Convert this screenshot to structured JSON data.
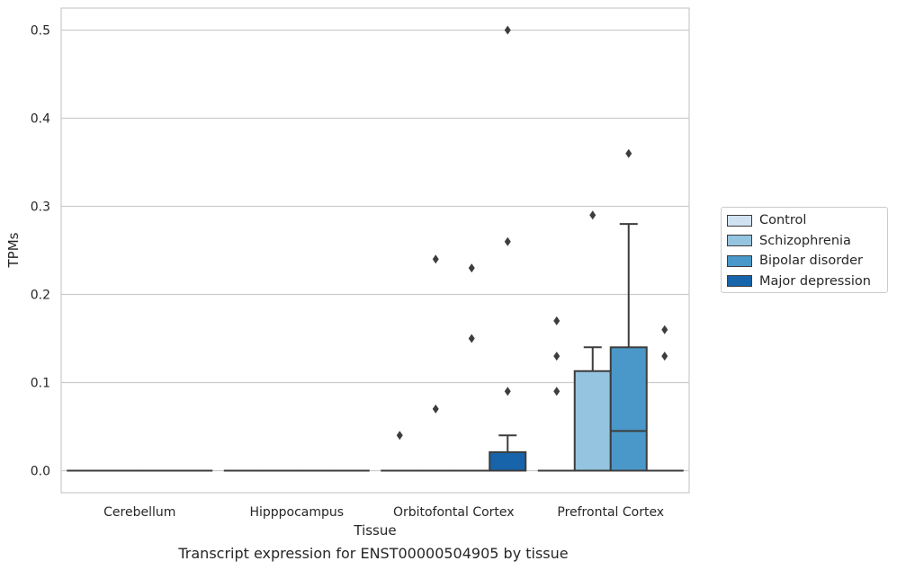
{
  "caption": "Transcript expression for ENST00000504905 by tissue",
  "chart_data": {
    "type": "box",
    "xlabel": "Tissue",
    "ylabel": "TPMs",
    "ylim": [
      -0.025,
      0.525
    ],
    "yticks": [
      0.0,
      0.1,
      0.2,
      0.3,
      0.4,
      0.5
    ],
    "ytick_labels": [
      "0.0",
      "0.1",
      "0.2",
      "0.3",
      "0.4",
      "0.5"
    ],
    "grid": "horizontal",
    "legend_position": "right",
    "categories": [
      "Cerebellum",
      "Hipppocampus",
      "Orbitofontal Cortex",
      "Prefrontal Cortex"
    ],
    "series": [
      {
        "name": "Control",
        "color": "#d0e1f2",
        "boxes": [
          {
            "q1": 0,
            "median": 0,
            "q3": 0,
            "whislo": 0,
            "whishi": 0,
            "fliers": []
          },
          {
            "q1": 0,
            "median": 0,
            "q3": 0,
            "whislo": 0,
            "whishi": 0,
            "fliers": []
          },
          {
            "q1": 0,
            "median": 0,
            "q3": 0,
            "whislo": 0,
            "whishi": 0,
            "fliers": [
              0.04
            ]
          },
          {
            "q1": 0,
            "median": 0,
            "q3": 0,
            "whislo": 0,
            "whishi": 0,
            "fliers": [
              0.09,
              0.13,
              0.17
            ]
          }
        ]
      },
      {
        "name": "Schizophrenia",
        "color": "#94c4df",
        "boxes": [
          {
            "q1": 0,
            "median": 0,
            "q3": 0,
            "whislo": 0,
            "whishi": 0,
            "fliers": []
          },
          {
            "q1": 0,
            "median": 0,
            "q3": 0,
            "whislo": 0,
            "whishi": 0,
            "fliers": []
          },
          {
            "q1": 0,
            "median": 0,
            "q3": 0,
            "whislo": 0,
            "whishi": 0,
            "fliers": [
              0.07,
              0.24
            ]
          },
          {
            "q1": 0,
            "median": 0,
            "q3": 0.113,
            "whislo": 0,
            "whishi": 0.14,
            "fliers": [
              0.29
            ]
          }
        ]
      },
      {
        "name": "Bipolar disorder",
        "color": "#4a98c9",
        "boxes": [
          {
            "q1": 0,
            "median": 0,
            "q3": 0,
            "whislo": 0,
            "whishi": 0,
            "fliers": []
          },
          {
            "q1": 0,
            "median": 0,
            "q3": 0,
            "whislo": 0,
            "whishi": 0,
            "fliers": []
          },
          {
            "q1": 0,
            "median": 0,
            "q3": 0,
            "whislo": 0,
            "whishi": 0,
            "fliers": [
              0.15,
              0.23
            ]
          },
          {
            "q1": 0,
            "median": 0.045,
            "q3": 0.14,
            "whislo": 0,
            "whishi": 0.28,
            "fliers": [
              0.36
            ]
          }
        ]
      },
      {
        "name": "Major depression",
        "color": "#1764ab",
        "boxes": [
          {
            "q1": 0,
            "median": 0,
            "q3": 0,
            "whislo": 0,
            "whishi": 0,
            "fliers": []
          },
          {
            "q1": 0,
            "median": 0,
            "q3": 0,
            "whislo": 0,
            "whishi": 0,
            "fliers": []
          },
          {
            "q1": 0,
            "median": 0,
            "q3": 0.021,
            "whislo": 0,
            "whishi": 0.04,
            "fliers": [
              0.09,
              0.26,
              0.5
            ]
          },
          {
            "q1": 0,
            "median": 0,
            "q3": 0,
            "whislo": 0,
            "whishi": 0,
            "fliers": [
              0.13,
              0.16
            ]
          }
        ]
      }
    ]
  }
}
